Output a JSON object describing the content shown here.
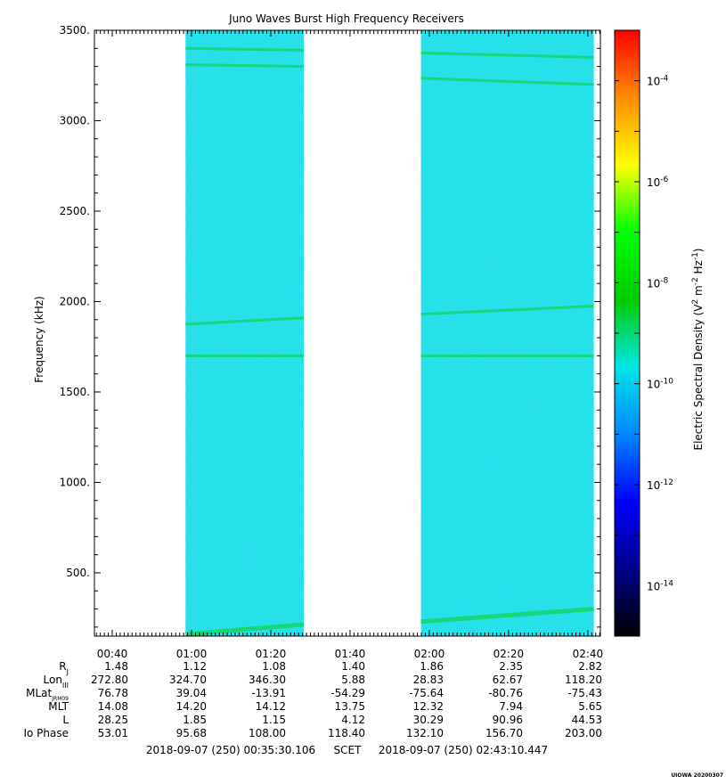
{
  "chart_data": {
    "type": "heatmap",
    "title": "Juno Waves Burst High Frequency Receivers",
    "ylabel": "Frequency (kHz)",
    "ylim": [
      150,
      3500
    ],
    "y_ticks": [
      "3500.",
      "3000.",
      "2500.",
      "2000.",
      "1500.",
      "1000.",
      "500."
    ],
    "y_tick_values": [
      3500,
      3000,
      2500,
      2000,
      1500,
      1000,
      500
    ],
    "x_range_minutes": [
      35.5,
      163.17
    ],
    "x_tick_labels": [
      "00:40",
      "01:00",
      "01:20",
      "01:40",
      "02:00",
      "02:20",
      "02:40"
    ],
    "x_tick_minutes": [
      40,
      60,
      80,
      100,
      120,
      140,
      160
    ],
    "data_segments_minutes": [
      [
        58.5,
        88.3
      ],
      [
        117.9,
        161.5
      ]
    ],
    "emission_lines": [
      {
        "segment": 0,
        "khz": [
          3400,
          3390
        ]
      },
      {
        "segment": 0,
        "khz": [
          3310,
          3300
        ]
      },
      {
        "segment": 0,
        "khz": [
          1875,
          1910
        ]
      },
      {
        "segment": 0,
        "khz": [
          1700,
          1700
        ]
      },
      {
        "segment": 0,
        "khz": [
          160,
          215
        ]
      },
      {
        "segment": 1,
        "khz": [
          3375,
          3350
        ]
      },
      {
        "segment": 1,
        "khz": [
          3235,
          3200
        ]
      },
      {
        "segment": 1,
        "khz": [
          1930,
          1975
        ]
      },
      {
        "segment": 1,
        "khz": [
          1700,
          1700
        ]
      },
      {
        "segment": 1,
        "khz": [
          230,
          300
        ]
      }
    ],
    "background_color": "#22e6e6",
    "colorbar": {
      "label": "Electric Spectral Density (V² m⁻² Hz⁻¹)",
      "label_main": "Electric Spectral Density (V",
      "label_sup1": "2",
      "label_m": " m",
      "label_sup2": "-2",
      "label_hz": " Hz",
      "label_sup3": "-1",
      "label_close": ")",
      "range_log10": [
        -15,
        -3
      ],
      "ticks_base": "10",
      "ticks_exp": [
        "-4",
        "-6",
        "-8",
        "-10",
        "-12",
        "-14"
      ],
      "tick_values_log10": [
        -4,
        -6,
        -8,
        -10,
        -12,
        -14
      ],
      "colors": [
        "#000000",
        "#00008b",
        "#0000ff",
        "#0087ff",
        "#00e6e6",
        "#00cc00",
        "#00ff00",
        "#ffff00",
        "#ff8c00",
        "#ff0000"
      ]
    },
    "ephemeris": {
      "row_labels": [
        "R",
        "Lon",
        "MLat",
        "MLT",
        "L",
        "Io Phase"
      ],
      "row_label_subs": [
        "J",
        "III",
        "JRM09",
        "",
        "",
        ""
      ],
      "rows": [
        [
          "1.48",
          "1.12",
          "1.08",
          "1.40",
          "1.86",
          "2.35",
          "2.82"
        ],
        [
          "272.80",
          "324.70",
          "346.30",
          "5.88",
          "28.83",
          "62.67",
          "118.20"
        ],
        [
          "76.78",
          "39.04",
          "-13.91",
          "-54.29",
          "-75.64",
          "-80.76",
          "-75.43"
        ],
        [
          "14.08",
          "14.20",
          "14.12",
          "13.75",
          "12.32",
          "7.94",
          "5.65"
        ],
        [
          "28.25",
          "1.85",
          "1.15",
          "4.12",
          "30.29",
          "90.96",
          "44.53"
        ],
        [
          "53.01",
          "95.68",
          "108.00",
          "118.40",
          "132.10",
          "156.70",
          "203.00"
        ]
      ]
    },
    "time_start": "2018-09-07 (250) 00:35:30.106",
    "time_axis_label": "SCET",
    "time_end": "2018-09-07 (250) 02:43:10.447",
    "stamp": "UIOWA 20200307"
  }
}
